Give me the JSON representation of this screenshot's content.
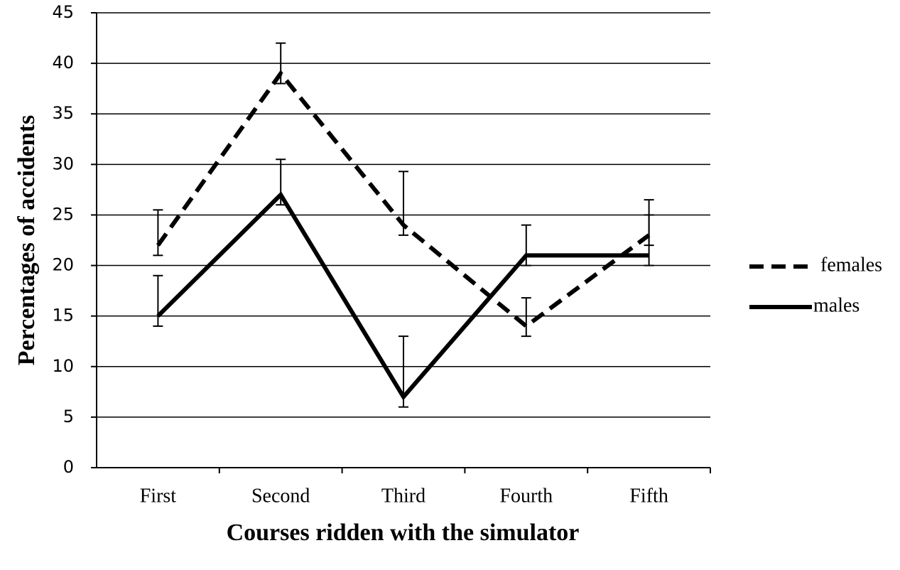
{
  "chart_data": {
    "type": "line",
    "x_label": "Courses ridden with the simulator",
    "y_label": "Percentages of accidents",
    "categories": [
      "First",
      "Second",
      "Third",
      "Fourth",
      "Fifth"
    ],
    "series": [
      {
        "name": "females",
        "color": "#000000",
        "dashed": true,
        "values": [
          22,
          39,
          24,
          14,
          23
        ],
        "error_plus": [
          3.5,
          3,
          5.3,
          2.8,
          3.5
        ],
        "error_minus": [
          1,
          1,
          1,
          1,
          1
        ]
      },
      {
        "name": "males",
        "color": "#000000",
        "dashed": false,
        "values": [
          15,
          27,
          7,
          21,
          21
        ],
        "error_plus": [
          4,
          3.5,
          6,
          3,
          4
        ],
        "error_minus": [
          1,
          1,
          1,
          1,
          1
        ]
      }
    ],
    "ylim": [
      0,
      45
    ],
    "yticks": [
      0,
      5,
      10,
      15,
      20,
      25,
      30,
      35,
      40,
      45
    ],
    "grid": true,
    "legend": "right"
  }
}
